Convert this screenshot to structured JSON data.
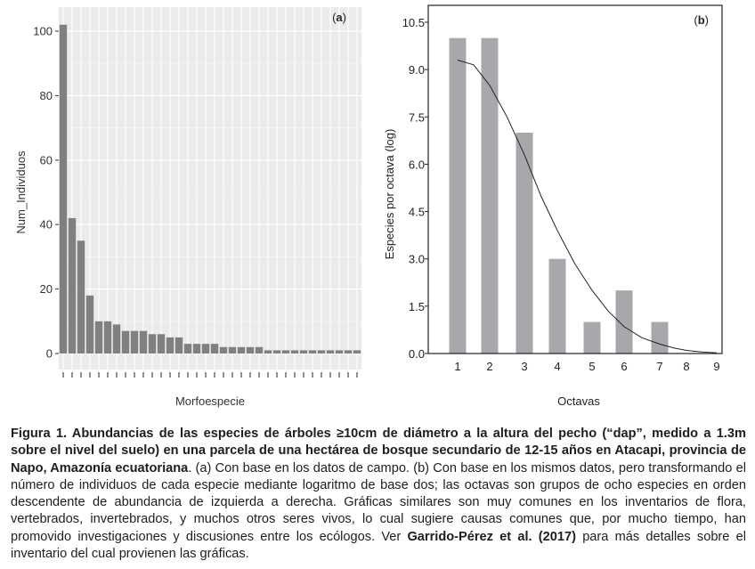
{
  "chart_data": [
    {
      "id": "a",
      "type": "bar",
      "panel_label": "(a)",
      "xlabel": "Morfoespecie",
      "ylabel": "Num_Individuos",
      "ylim": [
        0,
        105
      ],
      "yticks": [
        0,
        20,
        40,
        60,
        80,
        100
      ],
      "grid": true,
      "categories_count": 34,
      "values": [
        102,
        42,
        35,
        18,
        10,
        10,
        9,
        7,
        7,
        7,
        6,
        6,
        5,
        5,
        3,
        3,
        3,
        3,
        2,
        2,
        2,
        2,
        2,
        1,
        1,
        1,
        1,
        1,
        1,
        1,
        1,
        1,
        1,
        1
      ],
      "bar_color": "#808080",
      "background": "#ebebeb"
    },
    {
      "id": "b",
      "type": "bar",
      "panel_label": "(b)",
      "xlabel": "Octavas",
      "ylabel": "Especies por octava (log)",
      "ylim": [
        0,
        10.5
      ],
      "yticks": [
        "0.0",
        "1.5",
        "3.0",
        "4.5",
        "6.0",
        "7.5",
        "9.0",
        "10.5"
      ],
      "categories": [
        "1",
        "2",
        "3",
        "4",
        "5",
        "6",
        "7",
        "8",
        "9"
      ],
      "values": [
        10,
        10,
        7,
        3,
        1,
        2,
        1,
        0,
        0
      ],
      "bar_color": "#a7a8ab",
      "grid": false,
      "fitted_curve": {
        "x": [
          1,
          1.5,
          2,
          2.5,
          3,
          3.5,
          4,
          4.5,
          5,
          5.5,
          6,
          6.5,
          7,
          7.5,
          8,
          8.5,
          9
        ],
        "y": [
          9.3,
          9.15,
          8.5,
          7.5,
          6.3,
          5.0,
          3.9,
          2.85,
          2.0,
          1.35,
          0.85,
          0.5,
          0.3,
          0.18,
          0.1,
          0.05,
          0.02
        ]
      }
    }
  ],
  "caption": {
    "bold_intro": "Figura 1. Abundancias de las especies de árboles ≥10cm de diámetro a la altura del pecho (“dap”, medido a 1.3m sobre el nivel del suelo) en una parcela de una hectárea de bosque secundario de 12-15 años en Atacapi, provincia de Napo, Amazonía ecuatoriana",
    "body": ". (a) Con base en los datos de campo. (b) Con base en los mismos datos, pero transformando el número de individuos de cada especie mediante logaritmo de base dos; las octavas son grupos de ocho especies en orden descendente de abundancia de izquierda a derecha. Gráficas similares son muy comunes en los inventarios de flora, vertebrados, invertebrados, y muchos otros seres vivos, lo cual sugiere causas comunes que, por mucho tiempo, han promovido investigaciones y discusiones entre los ecólogos. Ver ",
    "reference": "Garrido-Pérez et al. (2017)",
    "tail": " para más detalles sobre el inventario del cual provienen las gráficas."
  }
}
